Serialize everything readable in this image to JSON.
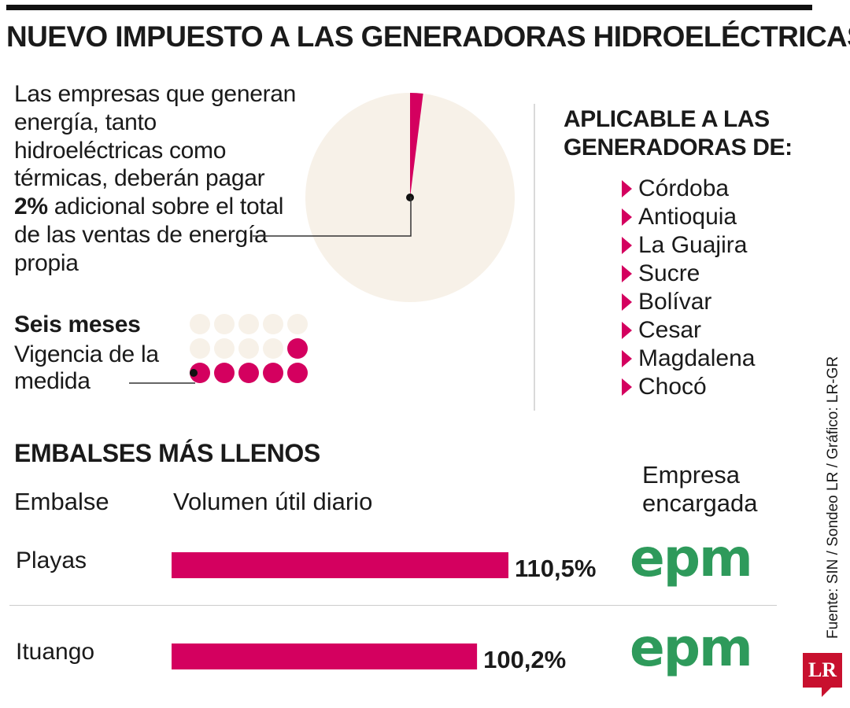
{
  "title": "NUEVO IMPUESTO A LAS GENERADORAS HIDROELÉCTRICAS",
  "intro": {
    "before": "Las empresas que generan energía, tanto hidroeléctricas como térmicas, deberán pagar ",
    "highlight": "2%",
    "after": " adicional sobre el total de las ventas de energía propia"
  },
  "colors": {
    "accent": "#d4005f",
    "pie_bg": "#f7f1e8",
    "dot_bg": "#f7f1e8",
    "epm_green": "#2e9a5b"
  },
  "applicable": {
    "title": "APLICABLE A LAS GENERADORAS DE:",
    "items": [
      "Córdoba",
      "Antioquia",
      "La Guajira",
      "Sucre",
      "Bolívar",
      "Cesar",
      "Magdalena",
      "Chocó"
    ]
  },
  "duration": {
    "title": "Seis meses",
    "text": "Vigencia de la medida"
  },
  "reservoirs": {
    "title": "EMBALSES MÁS LLENOS",
    "col_embalse": "Embalse",
    "col_volumen": "Volumen útil diario",
    "col_empresa": "Empresa encargada"
  },
  "company_logo_text": "epm",
  "source": "Fuente: SIN / Sondeo LR / Gráfico: LR-GR",
  "brand": "LR",
  "chart_data": [
    {
      "type": "pie",
      "slices": [
        {
          "label": "2%",
          "value": 2
        },
        {
          "label": "",
          "value": 98
        }
      ]
    },
    {
      "type": "waffle",
      "total": 15,
      "filled": 6,
      "title": "Seis meses"
    },
    {
      "type": "bar",
      "orientation": "horizontal",
      "categories": [
        "Playas",
        "Ituango"
      ],
      "values": [
        110.5,
        100.2
      ],
      "value_labels": [
        "110,5%",
        "100,2%"
      ],
      "xlabel": "Volumen útil diario",
      "xlim": [
        0,
        110.5
      ]
    }
  ]
}
